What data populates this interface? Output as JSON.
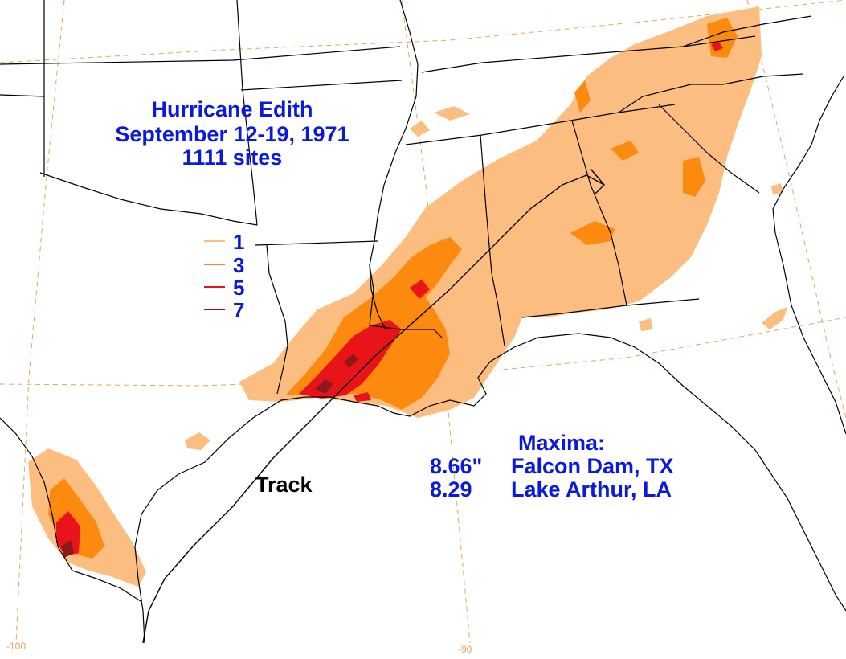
{
  "title": {
    "line1": "Hurricane Edith",
    "line2": "September 12-19, 1971",
    "line3": "1111 sites"
  },
  "legend": {
    "items": [
      {
        "label": "1",
        "color": "#fbbe80"
      },
      {
        "label": "3",
        "color": "#fb8a0e"
      },
      {
        "label": "5",
        "color": "#e8141a"
      },
      {
        "label": "7",
        "color": "#8b1a1a"
      }
    ]
  },
  "maxima": {
    "heading": "Maxima:",
    "rows": [
      {
        "value": "8.66\"",
        "location": "Falcon Dam, TX"
      },
      {
        "value": "8.29",
        "location": "Lake Arthur, LA"
      }
    ]
  },
  "track_label": "Track",
  "graticule": {
    "lon_labels": [
      "-100",
      "-90"
    ],
    "color": "#e3a55a"
  },
  "colors": {
    "text": "#0a1adc",
    "coast": "#000000",
    "track": "#000000"
  }
}
